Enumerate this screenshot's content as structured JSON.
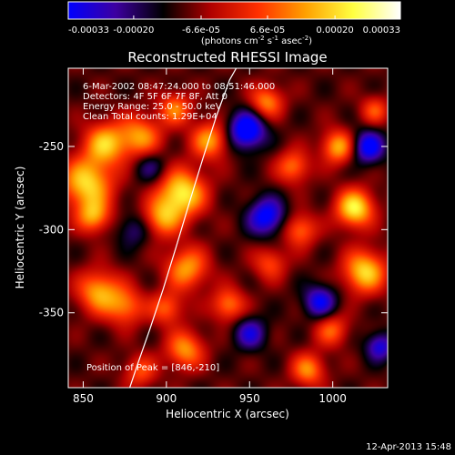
{
  "chart_data": {
    "type": "heatmap",
    "title": "Reconstructed RHESSI Image",
    "xlabel": "Heliocentric X (arcsec)",
    "ylabel": "Heliocentric Y (arcsec)",
    "xlim": [
      841,
      1033
    ],
    "ylim": [
      -395,
      -203
    ],
    "x_ticks": [
      850,
      900,
      950,
      1000
    ],
    "y_ticks": [
      -250,
      -300,
      -350
    ],
    "colorbar": {
      "ticks": [
        "-0.00033",
        "-0.00020",
        "-6.6e-05",
        "6.6e-05",
        "0.00020",
        "0.00033"
      ],
      "tick_values": [
        -0.00033,
        -0.0002,
        -6.6e-05,
        6.6e-05,
        0.0002,
        0.00033
      ],
      "range": [
        -0.00033,
        0.00033
      ],
      "label_main": "(photons cm",
      "label_exp1": "-2",
      "label_mid": " s",
      "label_exp2": "-1",
      "label_mid2": " asec",
      "label_exp3": "-2",
      "label_end": ")",
      "colormap": [
        "#0000ff",
        "#3d00a0",
        "#000000",
        "#b00000",
        "#ff3000",
        "#ffa000",
        "#ffff40",
        "#ffffff"
      ]
    },
    "annotations": [
      "6-Mar-2002 08:47:24.000 to 08:51:46.000",
      "Detectors: 4F 5F 6F 7F 8F, Att 0",
      "Energy Range: 25.0 - 50.0 keV",
      "Clean    Total counts: 1.29E+04"
    ],
    "peak_label": "Position of Peak = [846,-210]",
    "limb_arc": {
      "x": [
        878,
        883,
        890,
        898,
        906,
        914,
        922,
        930,
        938,
        942
      ],
      "y": [
        -395,
        -380,
        -360,
        -336,
        -310,
        -283,
        -257,
        -232,
        -210,
        -203
      ]
    },
    "sources": [
      {
        "x": 852,
        "y": -272,
        "amp": 0.0003,
        "s": 11
      },
      {
        "x": 863,
        "y": -248,
        "amp": 0.00026,
        "s": 9
      },
      {
        "x": 884,
        "y": -244,
        "amp": 0.00023,
        "s": 9
      },
      {
        "x": 909,
        "y": -278,
        "amp": 0.00033,
        "s": 10
      },
      {
        "x": 897,
        "y": -293,
        "amp": 0.00022,
        "s": 8
      },
      {
        "x": 926,
        "y": -246,
        "amp": 0.00024,
        "s": 8
      },
      {
        "x": 905,
        "y": -227,
        "amp": 0.0002,
        "s": 7
      },
      {
        "x": 856,
        "y": -292,
        "amp": 0.00022,
        "s": 7
      },
      {
        "x": 859,
        "y": -337,
        "amp": 0.00025,
        "s": 9
      },
      {
        "x": 875,
        "y": -346,
        "amp": 0.0002,
        "s": 8
      },
      {
        "x": 912,
        "y": -323,
        "amp": 0.00024,
        "s": 9
      },
      {
        "x": 900,
        "y": -347,
        "amp": 0.00018,
        "s": 7
      },
      {
        "x": 911,
        "y": -372,
        "amp": 0.00023,
        "s": 8
      },
      {
        "x": 937,
        "y": -345,
        "amp": 0.00021,
        "s": 7
      },
      {
        "x": 884,
        "y": -385,
        "amp": 0.00016,
        "s": 7
      },
      {
        "x": 1013,
        "y": -287,
        "amp": 0.00033,
        "s": 8
      },
      {
        "x": 1019,
        "y": -325,
        "amp": 0.0003,
        "s": 9
      },
      {
        "x": 1003,
        "y": -250,
        "amp": 0.00026,
        "s": 7
      },
      {
        "x": 960,
        "y": -223,
        "amp": 0.00022,
        "s": 7
      },
      {
        "x": 976,
        "y": -262,
        "amp": 0.0002,
        "s": 7
      },
      {
        "x": 980,
        "y": -300,
        "amp": 0.0002,
        "s": 7
      },
      {
        "x": 962,
        "y": -320,
        "amp": 0.00016,
        "s": 7
      },
      {
        "x": 999,
        "y": -360,
        "amp": 0.00018,
        "s": 7
      },
      {
        "x": 985,
        "y": -384,
        "amp": 0.00022,
        "s": 7
      },
      {
        "x": 1025,
        "y": -228,
        "amp": 0.00016,
        "s": 6
      },
      {
        "x": 960,
        "y": -292,
        "amp": -0.00025,
        "s": 8
      },
      {
        "x": 948,
        "y": -240,
        "amp": -0.0003,
        "s": 8
      },
      {
        "x": 1021,
        "y": -250,
        "amp": -0.00025,
        "s": 7
      },
      {
        "x": 992,
        "y": -343,
        "amp": -0.00022,
        "s": 7
      },
      {
        "x": 950,
        "y": -362,
        "amp": -0.00018,
        "s": 7
      },
      {
        "x": 1028,
        "y": -370,
        "amp": -0.0002,
        "s": 6
      },
      {
        "x": 890,
        "y": -262,
        "amp": -0.00012,
        "s": 7
      },
      {
        "x": 880,
        "y": -300,
        "amp": -0.00012,
        "s": 7
      }
    ]
  },
  "footer": {
    "timestamp": "12-Apr-2013 15:48"
  }
}
